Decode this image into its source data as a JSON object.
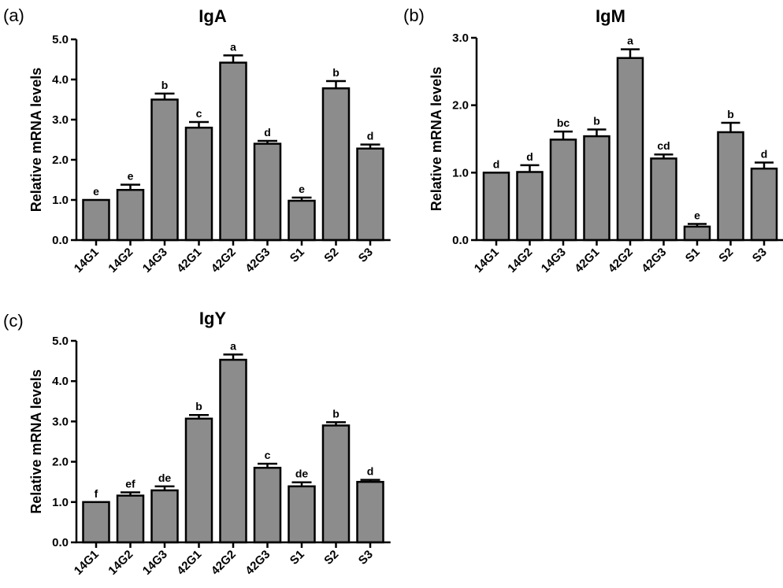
{
  "chart_data": [
    {
      "type": "bar",
      "panel": "(a)",
      "title": "IgA",
      "ylabel": "Relative mRNA levels",
      "xlabel": "",
      "ylim": [
        0,
        5
      ],
      "yticks": [
        "0.0",
        "1.0",
        "2.0",
        "3.0",
        "4.0",
        "5.0"
      ],
      "categories": [
        "14G1",
        "14G2",
        "14G3",
        "42G1",
        "42G2",
        "42G3",
        "S1",
        "S2",
        "S3"
      ],
      "values": [
        1.0,
        1.25,
        3.5,
        2.8,
        4.42,
        2.4,
        0.98,
        3.78,
        2.28
      ],
      "errors": [
        0.0,
        0.13,
        0.15,
        0.14,
        0.18,
        0.07,
        0.08,
        0.18,
        0.1
      ],
      "letters": [
        "e",
        "e",
        "b",
        "c",
        "a",
        "d",
        "e",
        "b",
        "d"
      ]
    },
    {
      "type": "bar",
      "panel": "(b)",
      "title": "IgM",
      "ylabel": "Relative mRNA levels",
      "xlabel": "",
      "ylim": [
        0,
        3
      ],
      "yticks": [
        "0.0",
        "1.0",
        "2.0",
        "3.0"
      ],
      "categories": [
        "14G1",
        "14G2",
        "14G3",
        "42G1",
        "42G2",
        "42G3",
        "S1",
        "S2",
        "S3"
      ],
      "values": [
        1.0,
        1.01,
        1.49,
        1.54,
        2.7,
        1.21,
        0.2,
        1.6,
        1.06
      ],
      "errors": [
        0.0,
        0.1,
        0.12,
        0.1,
        0.13,
        0.06,
        0.04,
        0.14,
        0.09
      ],
      "letters": [
        "d",
        "d",
        "bc",
        "b",
        "a",
        "cd",
        "e",
        "b",
        "d"
      ]
    },
    {
      "type": "bar",
      "panel": "(c)",
      "title": "IgY",
      "ylabel": "Relative mRNA levels",
      "xlabel": "",
      "ylim": [
        0,
        5
      ],
      "yticks": [
        "0.0",
        "1.0",
        "2.0",
        "3.0",
        "4.0",
        "5.0"
      ],
      "categories": [
        "14G1",
        "14G2",
        "14G3",
        "42G1",
        "42G2",
        "42G3",
        "S1",
        "S2",
        "S3"
      ],
      "values": [
        1.0,
        1.16,
        1.29,
        3.07,
        4.53,
        1.85,
        1.39,
        2.9,
        1.5
      ],
      "errors": [
        0.0,
        0.08,
        0.1,
        0.09,
        0.13,
        0.1,
        0.1,
        0.08,
        0.05
      ],
      "letters": [
        "f",
        "ef",
        "de",
        "b",
        "a",
        "c",
        "de",
        "b",
        "d"
      ]
    }
  ]
}
